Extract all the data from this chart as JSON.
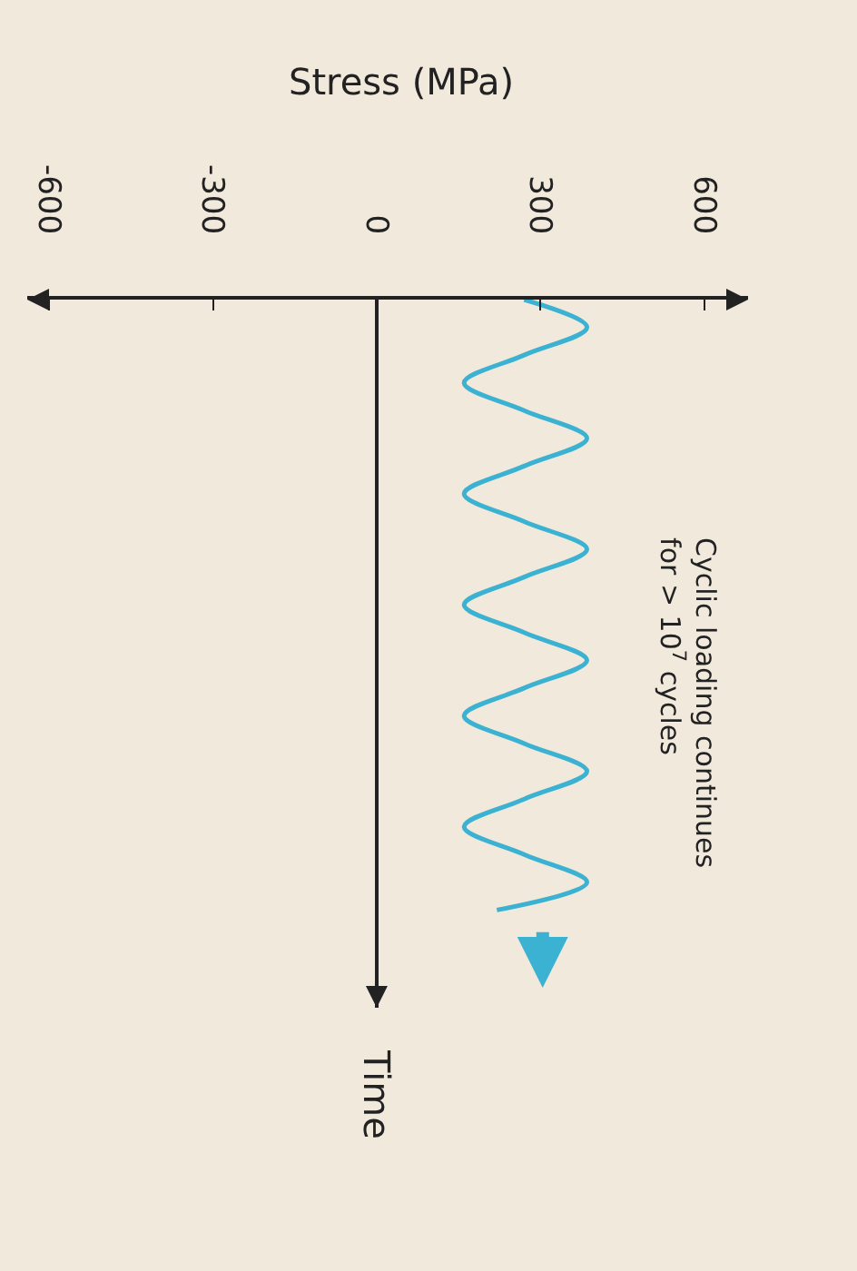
{
  "chart_data": {
    "type": "line",
    "orientation": "horizontal",
    "xlabel": "Stress (MPa)",
    "ylabel": "Time",
    "annotations": [
      "Cyclic loading continues\nfor > 10$^{7}$ cycles"
    ],
    "categories": [
      null,
      null,
      null,
      null,
      null,
      null,
      null,
      null,
      null,
      null,
      null,
      null,
      null,
      null,
      null,
      null,
      null,
      null,
      null,
      null,
      null,
      null,
      null
    ],
    "series": [
      {
        "color": "#3cb2d2",
        "values": [
          270,
          385,
          270,
          160,
          270,
          385,
          270,
          160,
          270,
          385,
          270,
          160,
          270,
          385,
          270,
          160,
          270,
          385,
          270,
          160,
          270,
          385,
          220
        ]
      }
    ],
    "xlim": [
      -640,
      680
    ],
    "xticks": [
      -600,
      -300,
      0,
      300,
      600
    ],
    "marker": "none",
    "line_style": "solid"
  }
}
